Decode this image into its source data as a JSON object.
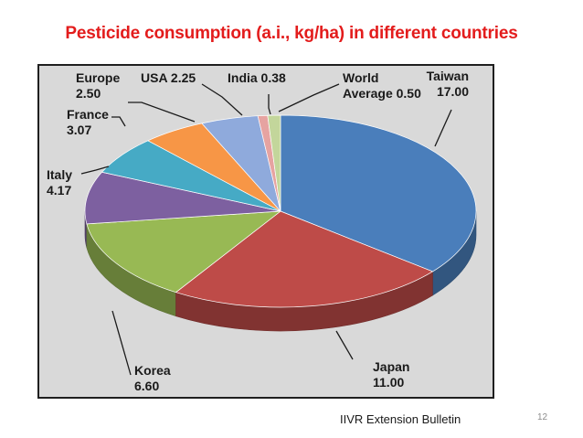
{
  "slide": {
    "title": "Pesticide consumption (a.i., kg/ha) in different countries",
    "source": "IIVR Extension Bulletin",
    "page_number": "12"
  },
  "chart_data": {
    "type": "pie",
    "variant": "3d",
    "title": "",
    "slices": [
      {
        "label": "Taiwan",
        "value": 17.0,
        "display": "17.00",
        "color": "#4a7ebb"
      },
      {
        "label": "Japan",
        "value": 11.0,
        "display": "11.00",
        "color": "#be4b48"
      },
      {
        "label": "Korea",
        "value": 6.6,
        "display": "6.60",
        "color": "#98b954"
      },
      {
        "label": "Italy",
        "value": 4.17,
        "display": "4.17",
        "color": "#7d60a0"
      },
      {
        "label": "France",
        "value": 3.07,
        "display": "3.07",
        "color": "#46aac5"
      },
      {
        "label": "Europe",
        "value": 2.5,
        "display": "2.50",
        "color": "#f79646"
      },
      {
        "label": "USA",
        "value": 2.25,
        "display": "2.25",
        "color": "#8faadc"
      },
      {
        "label": "India",
        "value": 0.38,
        "display": "0.38",
        "color": "#e6a3a1"
      },
      {
        "label": "World Average",
        "value": 0.5,
        "display": "0.50",
        "color": "#c3d69b"
      }
    ],
    "labels": [
      {
        "lines": [
          "Taiwan",
          "17.00"
        ]
      },
      {
        "lines": [
          "Japan",
          "11.00"
        ]
      },
      {
        "lines": [
          "Korea",
          "6.60"
        ]
      },
      {
        "lines": [
          "Italy",
          "4.17"
        ]
      },
      {
        "lines": [
          "France",
          "3.07"
        ]
      },
      {
        "lines": [
          "Europe",
          "2.50"
        ]
      },
      {
        "lines": [
          "USA 2.25"
        ]
      },
      {
        "lines": [
          "India  0.38"
        ]
      },
      {
        "lines": [
          "World",
          "Average  0.50"
        ]
      }
    ]
  }
}
